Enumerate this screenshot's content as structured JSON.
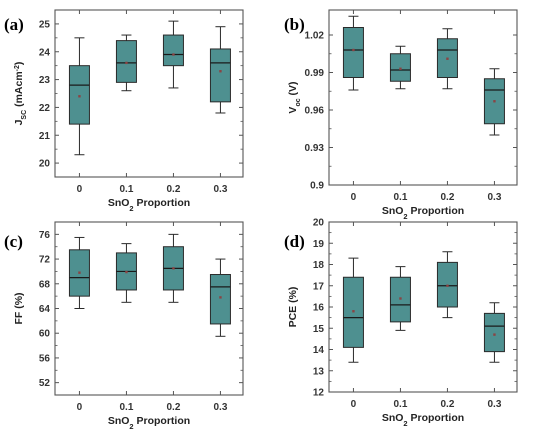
{
  "colors": {
    "box_fill": "#4e9090",
    "box_edge": "#2a2a2a",
    "frame": "#555555",
    "mean_marker": "#8a4444"
  },
  "chart_data": [
    {
      "panel": "(a)",
      "type": "box",
      "ylabel": {
        "main": "J",
        "sub": "SC",
        "rest": " (mAcm",
        "sup": "-2",
        "end": ")"
      },
      "xlabel": {
        "main": "SnO",
        "sub": "2",
        "rest": " Proportion"
      },
      "categories": [
        "0",
        "0.1",
        "0.2",
        "0.3"
      ],
      "ylim": [
        19.5,
        25.5
      ],
      "yticks": [
        "20",
        "21",
        "22",
        "23",
        "24",
        "25"
      ],
      "boxes": [
        {
          "whisker_low": 20.3,
          "q1": 21.4,
          "median": 22.8,
          "q3": 23.5,
          "whisker_high": 24.5,
          "mean": 22.4
        },
        {
          "whisker_low": 22.6,
          "q1": 22.9,
          "median": 23.6,
          "q3": 24.4,
          "whisker_high": 24.6,
          "mean": 23.6
        },
        {
          "whisker_low": 22.7,
          "q1": 23.5,
          "median": 23.9,
          "q3": 24.6,
          "whisker_high": 25.1,
          "mean": 23.9
        },
        {
          "whisker_low": 21.8,
          "q1": 22.2,
          "median": 23.6,
          "q3": 24.1,
          "whisker_high": 24.9,
          "mean": 23.3
        }
      ]
    },
    {
      "panel": "(b)",
      "type": "box",
      "ylabel": {
        "main": "V",
        "sub": "oc",
        "rest": " (V)",
        "sup": "",
        "end": ""
      },
      "xlabel": {
        "main": "SnO",
        "sub": "2",
        "rest": " Proportion"
      },
      "categories": [
        "0",
        "0.1",
        "0.2",
        "0.3"
      ],
      "ylim": [
        0.9,
        1.04
      ],
      "yticks": [
        "0.9",
        "0.93",
        "0.96",
        "0.99",
        "1.02"
      ],
      "boxes": [
        {
          "whisker_low": 0.976,
          "q1": 0.986,
          "median": 1.008,
          "q3": 1.026,
          "whisker_high": 1.035,
          "mean": 1.008
        },
        {
          "whisker_low": 0.977,
          "q1": 0.983,
          "median": 0.992,
          "q3": 1.005,
          "whisker_high": 1.011,
          "mean": 0.993
        },
        {
          "whisker_low": 0.977,
          "q1": 0.986,
          "median": 1.008,
          "q3": 1.017,
          "whisker_high": 1.025,
          "mean": 1.001
        },
        {
          "whisker_low": 0.94,
          "q1": 0.949,
          "median": 0.976,
          "q3": 0.985,
          "whisker_high": 0.993,
          "mean": 0.967
        }
      ]
    },
    {
      "panel": "(c)",
      "type": "box",
      "ylabel": {
        "main": "FF (%)",
        "sub": "",
        "rest": "",
        "sup": "",
        "end": ""
      },
      "xlabel": {
        "main": "SnO",
        "sub": "2",
        "rest": " Proportion"
      },
      "categories": [
        "0",
        "0.1",
        "0.2",
        "0.3"
      ],
      "ylim": [
        50,
        78
      ],
      "yticks": [
        "52",
        "56",
        "60",
        "64",
        "68",
        "72",
        "76"
      ],
      "boxes": [
        {
          "whisker_low": 64.0,
          "q1": 66.0,
          "median": 69.0,
          "q3": 73.5,
          "whisker_high": 75.5,
          "mean": 69.8
        },
        {
          "whisker_low": 65.0,
          "q1": 67.0,
          "median": 70.0,
          "q3": 73.0,
          "whisker_high": 74.5,
          "mean": 69.9
        },
        {
          "whisker_low": 65.0,
          "q1": 67.0,
          "median": 70.5,
          "q3": 74.0,
          "whisker_high": 76.0,
          "mean": 70.5
        },
        {
          "whisker_low": 59.5,
          "q1": 61.5,
          "median": 67.5,
          "q3": 69.5,
          "whisker_high": 72.0,
          "mean": 65.8
        }
      ]
    },
    {
      "panel": "(d)",
      "type": "box",
      "ylabel": {
        "main": "PCE (%)",
        "sub": "",
        "rest": "",
        "sup": "",
        "end": ""
      },
      "xlabel": {
        "main": "SnO",
        "sub": "2",
        "rest": " Proportion"
      },
      "categories": [
        "0",
        "0.1",
        "0.2",
        "0.3"
      ],
      "ylim": [
        12,
        20
      ],
      "yticks": [
        "12",
        "13",
        "14",
        "15",
        "16",
        "17",
        "18",
        "19",
        "20"
      ],
      "boxes": [
        {
          "whisker_low": 13.4,
          "q1": 14.1,
          "median": 15.5,
          "q3": 17.4,
          "whisker_high": 18.3,
          "mean": 15.8
        },
        {
          "whisker_low": 14.9,
          "q1": 15.3,
          "median": 16.1,
          "q3": 17.4,
          "whisker_high": 17.9,
          "mean": 16.4
        },
        {
          "whisker_low": 15.5,
          "q1": 16.0,
          "median": 17.0,
          "q3": 18.1,
          "whisker_high": 18.6,
          "mean": 17.0
        },
        {
          "whisker_low": 13.4,
          "q1": 13.9,
          "median": 15.1,
          "q3": 15.7,
          "whisker_high": 16.2,
          "mean": 14.7
        }
      ]
    }
  ]
}
